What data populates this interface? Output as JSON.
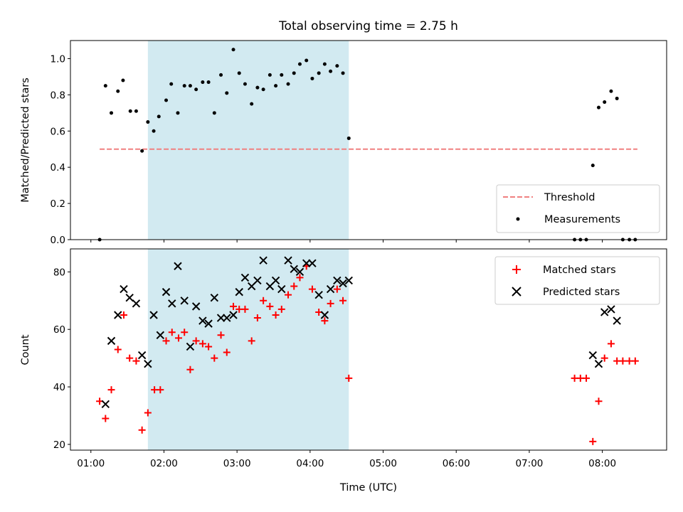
{
  "chart_data": {
    "title": "Total observing time = 2.75 h",
    "xlabel": "Time (UTC)",
    "x_ticks": [
      "01:00",
      "02:00",
      "03:00",
      "04:00",
      "05:00",
      "06:00",
      "07:00",
      "08:00"
    ],
    "x_tick_hours": [
      1,
      2,
      3,
      4,
      5,
      6,
      7,
      8
    ],
    "xlim_hours": [
      0.72,
      8.88
    ],
    "highlight_span_hours": [
      1.78,
      4.53
    ],
    "colors": {
      "span": "#add8e6",
      "threshold": "#f08080",
      "matched": "#ff0000",
      "predicted": "#000000",
      "measurement": "#000000"
    },
    "panels": [
      {
        "type": "scatter",
        "ylabel": "Matched/Predicted stars",
        "ylim": [
          0.0,
          1.1
        ],
        "y_ticks": [
          "0.0",
          "0.2",
          "0.4",
          "0.6",
          "0.8",
          "1.0"
        ],
        "y_tick_values": [
          0.0,
          0.2,
          0.4,
          0.6,
          0.8,
          1.0
        ],
        "legend_position": "lower right",
        "threshold": {
          "name": "Threshold",
          "value": 0.5,
          "x_range_hours": [
            1.12,
            8.48
          ]
        },
        "series": [
          {
            "name": "Measurements",
            "x_hours": [
              1.12,
              1.2,
              1.28,
              1.37,
              1.44,
              1.54,
              1.62,
              1.7,
              1.78,
              1.86,
              1.93,
              2.03,
              2.1,
              2.19,
              2.28,
              2.36,
              2.44,
              2.53,
              2.61,
              2.69,
              2.78,
              2.86,
              2.95,
              3.03,
              3.11,
              3.2,
              3.28,
              3.36,
              3.45,
              3.53,
              3.61,
              3.7,
              3.78,
              3.86,
              3.95,
              4.03,
              4.12,
              4.2,
              4.28,
              4.37,
              4.45,
              4.53,
              7.62,
              7.7,
              7.78,
              7.87,
              7.95,
              8.03,
              8.12,
              8.2,
              8.28,
              8.37,
              8.45
            ],
            "y": [
              0.0,
              0.85,
              0.7,
              0.82,
              0.88,
              0.71,
              0.71,
              0.49,
              0.65,
              0.6,
              0.68,
              0.77,
              0.86,
              0.7,
              0.85,
              0.85,
              0.83,
              0.87,
              0.87,
              0.7,
              0.91,
              0.81,
              1.05,
              0.92,
              0.86,
              0.75,
              0.84,
              0.83,
              0.91,
              0.85,
              0.91,
              0.86,
              0.92,
              0.97,
              0.99,
              0.89,
              0.92,
              0.97,
              0.93,
              0.96,
              0.92,
              0.56,
              0.0,
              0.0,
              0.0,
              0.41,
              0.73,
              0.76,
              0.82,
              0.78,
              0.0,
              0.0,
              0.0
            ]
          }
        ]
      },
      {
        "type": "scatter",
        "ylabel": "Count",
        "ylim": [
          18,
          88
        ],
        "y_ticks": [
          "20",
          "40",
          "60",
          "80"
        ],
        "y_tick_values": [
          20,
          40,
          60,
          80
        ],
        "legend_position": "upper right",
        "series": [
          {
            "name": "Matched stars",
            "marker": "plus",
            "x_hours": [
              1.12,
              1.2,
              1.28,
              1.37,
              1.45,
              1.53,
              1.62,
              1.7,
              1.78,
              1.87,
              1.95,
              2.03,
              2.11,
              2.2,
              2.28,
              2.36,
              2.44,
              2.53,
              2.61,
              2.69,
              2.78,
              2.86,
              2.95,
              3.03,
              3.11,
              3.2,
              3.28,
              3.36,
              3.45,
              3.53,
              3.61,
              3.7,
              3.78,
              3.86,
              3.95,
              4.03,
              4.12,
              4.2,
              4.28,
              4.37,
              4.45,
              4.53,
              7.62,
              7.7,
              7.78,
              7.87,
              7.95,
              8.03,
              8.12,
              8.2,
              8.28,
              8.37,
              8.45
            ],
            "y": [
              35,
              29,
              39,
              53,
              65,
              50,
              49,
              25,
              31,
              39,
              39,
              56,
              59,
              57,
              59,
              46,
              56,
              55,
              54,
              50,
              58,
              52,
              68,
              67,
              67,
              56,
              64,
              70,
              68,
              65,
              67,
              72,
              75,
              78,
              82,
              74,
              66,
              63,
              69,
              74,
              70,
              43,
              43,
              43,
              43,
              21,
              35,
              50,
              55,
              49,
              49,
              49,
              49
            ]
          },
          {
            "name": "Predicted stars",
            "marker": "x",
            "x_hours": [
              1.2,
              1.28,
              1.37,
              1.45,
              1.53,
              1.62,
              1.7,
              1.78,
              1.86,
              1.95,
              2.03,
              2.11,
              2.19,
              2.28,
              2.36,
              2.44,
              2.53,
              2.61,
              2.69,
              2.78,
              2.86,
              2.95,
              3.03,
              3.11,
              3.2,
              3.28,
              3.36,
              3.45,
              3.53,
              3.61,
              3.7,
              3.78,
              3.86,
              3.95,
              4.03,
              4.12,
              4.2,
              4.28,
              4.37,
              4.45,
              4.53,
              7.87,
              7.95,
              8.03,
              8.12,
              8.2
            ],
            "y": [
              34,
              56,
              65,
              74,
              71,
              69,
              51,
              48,
              65,
              58,
              73,
              69,
              82,
              70,
              54,
              68,
              63,
              62,
              71,
              64,
              64,
              65,
              73,
              78,
              75,
              77,
              84,
              75,
              77,
              74,
              84,
              81,
              80,
              83,
              83,
              72,
              65,
              74,
              77,
              76,
              77,
              51,
              48,
              66,
              67,
              63
            ]
          }
        ]
      }
    ]
  }
}
